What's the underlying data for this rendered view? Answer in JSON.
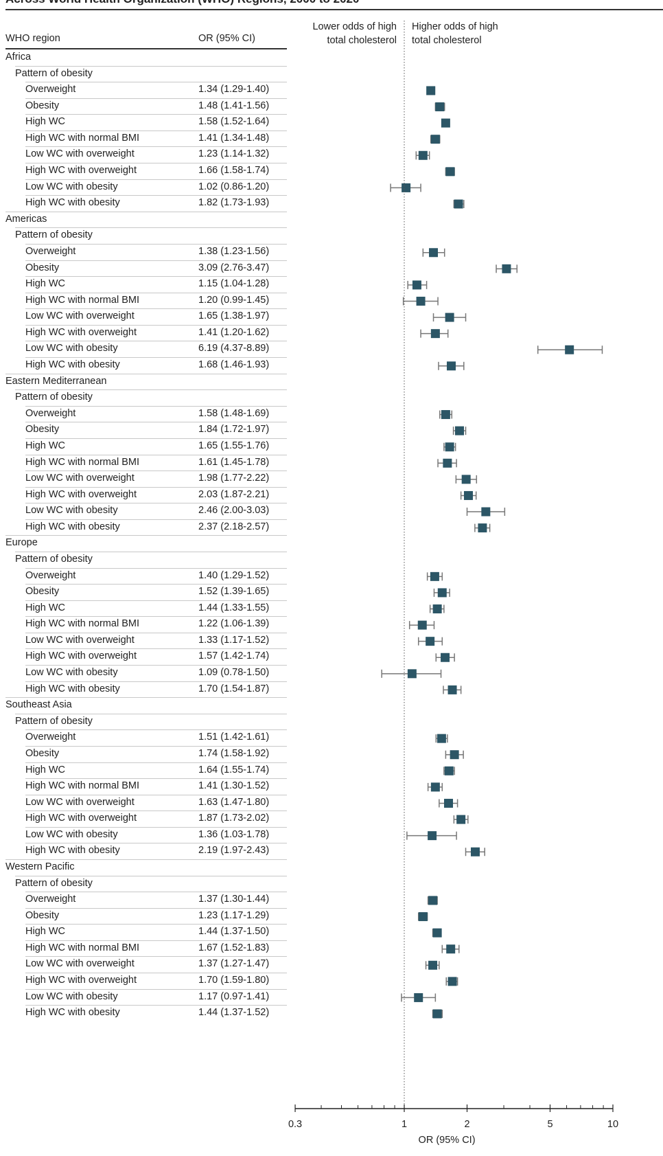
{
  "title": "Across World Health Organization (WHO) Regions, 2000 to 2020",
  "header": {
    "region": "WHO region",
    "or": "OR (95% CI)"
  },
  "direction": {
    "lower": [
      "Lower odds of high",
      "total cholesterol"
    ],
    "higher": [
      "Higher odds of high",
      "total cholesterol"
    ]
  },
  "colors": {
    "marker": "#2c5666",
    "ci": "#777777"
  },
  "chart_data": {
    "type": "forest",
    "xlabel": "OR (95% CI)",
    "xscale": "log",
    "xlim": [
      0.3,
      10
    ],
    "xticks": [
      "0.3",
      "1",
      "2",
      "5",
      "10"
    ],
    "reference_line": 1,
    "regions": [
      {
        "name": "Africa",
        "group": "Pattern of obesity",
        "rows": [
          {
            "label": "Overweight",
            "text": "1.34 (1.29-1.40)",
            "or": 1.34,
            "lo": 1.29,
            "hi": 1.4
          },
          {
            "label": "Obesity",
            "text": "1.48 (1.41-1.56)",
            "or": 1.48,
            "lo": 1.41,
            "hi": 1.56
          },
          {
            "label": "High WC",
            "text": "1.58 (1.52-1.64)",
            "or": 1.58,
            "lo": 1.52,
            "hi": 1.64
          },
          {
            "label": "High WC with normal BMI",
            "text": "1.41 (1.34-1.48)",
            "or": 1.41,
            "lo": 1.34,
            "hi": 1.48
          },
          {
            "label": "Low WC with overweight",
            "text": "1.23 (1.14-1.32)",
            "or": 1.23,
            "lo": 1.14,
            "hi": 1.32
          },
          {
            "label": "High WC with overweight",
            "text": "1.66 (1.58-1.74)",
            "or": 1.66,
            "lo": 1.58,
            "hi": 1.74
          },
          {
            "label": "Low WC with obesity",
            "text": "1.02 (0.86-1.20)",
            "or": 1.02,
            "lo": 0.86,
            "hi": 1.2
          },
          {
            "label": "High WC with obesity",
            "text": "1.82 (1.73-1.93)",
            "or": 1.82,
            "lo": 1.73,
            "hi": 1.93
          }
        ]
      },
      {
        "name": "Americas",
        "group": "Pattern of obesity",
        "rows": [
          {
            "label": "Overweight",
            "text": "1.38 (1.23-1.56)",
            "or": 1.38,
            "lo": 1.23,
            "hi": 1.56
          },
          {
            "label": "Obesity",
            "text": "3.09 (2.76-3.47)",
            "or": 3.09,
            "lo": 2.76,
            "hi": 3.47
          },
          {
            "label": "High WC",
            "text": "1.15 (1.04-1.28)",
            "or": 1.15,
            "lo": 1.04,
            "hi": 1.28
          },
          {
            "label": "High WC with normal BMI",
            "text": "1.20 (0.99-1.45)",
            "or": 1.2,
            "lo": 0.99,
            "hi": 1.45
          },
          {
            "label": "Low WC with overweight",
            "text": "1.65 (1.38-1.97)",
            "or": 1.65,
            "lo": 1.38,
            "hi": 1.97
          },
          {
            "label": "High WC with overweight",
            "text": "1.41 (1.20-1.62)",
            "or": 1.41,
            "lo": 1.2,
            "hi": 1.62
          },
          {
            "label": "Low WC with obesity",
            "text": "6.19 (4.37-8.89)",
            "or": 6.19,
            "lo": 4.37,
            "hi": 8.89
          },
          {
            "label": "High WC with obesity",
            "text": "1.68 (1.46-1.93)",
            "or": 1.68,
            "lo": 1.46,
            "hi": 1.93
          }
        ]
      },
      {
        "name": "Eastern Mediterranean",
        "group": "Pattern of obesity",
        "rows": [
          {
            "label": "Overweight",
            "text": "1.58 (1.48-1.69)",
            "or": 1.58,
            "lo": 1.48,
            "hi": 1.69
          },
          {
            "label": "Obesity",
            "text": "1.84 (1.72-1.97)",
            "or": 1.84,
            "lo": 1.72,
            "hi": 1.97
          },
          {
            "label": "High WC",
            "text": "1.65 (1.55-1.76)",
            "or": 1.65,
            "lo": 1.55,
            "hi": 1.76
          },
          {
            "label": "High WC with normal BMI",
            "text": "1.61 (1.45-1.78)",
            "or": 1.61,
            "lo": 1.45,
            "hi": 1.78
          },
          {
            "label": "Low WC with overweight",
            "text": "1.98 (1.77-2.22)",
            "or": 1.98,
            "lo": 1.77,
            "hi": 2.22
          },
          {
            "label": "High WC with overweight",
            "text": "2.03 (1.87-2.21)",
            "or": 2.03,
            "lo": 1.87,
            "hi": 2.21
          },
          {
            "label": "Low WC with obesity",
            "text": "2.46 (2.00-3.03)",
            "or": 2.46,
            "lo": 2.0,
            "hi": 3.03
          },
          {
            "label": "High WC with obesity",
            "text": "2.37 (2.18-2.57)",
            "or": 2.37,
            "lo": 2.18,
            "hi": 2.57
          }
        ]
      },
      {
        "name": "Europe",
        "group": "Pattern of obesity",
        "rows": [
          {
            "label": "Overweight",
            "text": "1.40 (1.29-1.52)",
            "or": 1.4,
            "lo": 1.29,
            "hi": 1.52
          },
          {
            "label": "Obesity",
            "text": "1.52 (1.39-1.65)",
            "or": 1.52,
            "lo": 1.39,
            "hi": 1.65
          },
          {
            "label": "High WC",
            "text": "1.44 (1.33-1.55)",
            "or": 1.44,
            "lo": 1.33,
            "hi": 1.55
          },
          {
            "label": "High WC with normal BMI",
            "text": "1.22 (1.06-1.39)",
            "or": 1.22,
            "lo": 1.06,
            "hi": 1.39
          },
          {
            "label": "Low WC with overweight",
            "text": "1.33 (1.17-1.52)",
            "or": 1.33,
            "lo": 1.17,
            "hi": 1.52
          },
          {
            "label": "High WC with overweight",
            "text": "1.57 (1.42-1.74)",
            "or": 1.57,
            "lo": 1.42,
            "hi": 1.74
          },
          {
            "label": "Low WC with obesity",
            "text": "1.09 (0.78-1.50)",
            "or": 1.09,
            "lo": 0.78,
            "hi": 1.5
          },
          {
            "label": "High WC with obesity",
            "text": "1.70 (1.54-1.87)",
            "or": 1.7,
            "lo": 1.54,
            "hi": 1.87
          }
        ]
      },
      {
        "name": "Southeast Asia",
        "group": "Pattern of obesity",
        "rows": [
          {
            "label": "Overweight",
            "text": "1.51 (1.42-1.61)",
            "or": 1.51,
            "lo": 1.42,
            "hi": 1.61
          },
          {
            "label": "Obesity",
            "text": "1.74 (1.58-1.92)",
            "or": 1.74,
            "lo": 1.58,
            "hi": 1.92
          },
          {
            "label": "High WC",
            "text": "1.64 (1.55-1.74)",
            "or": 1.64,
            "lo": 1.55,
            "hi": 1.74
          },
          {
            "label": "High WC with normal BMI",
            "text": "1.41 (1.30-1.52)",
            "or": 1.41,
            "lo": 1.3,
            "hi": 1.52
          },
          {
            "label": "Low WC with overweight",
            "text": "1.63 (1.47-1.80)",
            "or": 1.63,
            "lo": 1.47,
            "hi": 1.8
          },
          {
            "label": "High WC with overweight",
            "text": "1.87 (1.73-2.02)",
            "or": 1.87,
            "lo": 1.73,
            "hi": 2.02
          },
          {
            "label": "Low WC with obesity",
            "text": "1.36 (1.03-1.78)",
            "or": 1.36,
            "lo": 1.03,
            "hi": 1.78
          },
          {
            "label": "High WC with obesity",
            "text": "2.19 (1.97-2.43)",
            "or": 2.19,
            "lo": 1.97,
            "hi": 2.43
          }
        ]
      },
      {
        "name": "Western Pacific",
        "group": "Pattern of obesity",
        "rows": [
          {
            "label": "Overweight",
            "text": "1.37 (1.30-1.44)",
            "or": 1.37,
            "lo": 1.3,
            "hi": 1.44
          },
          {
            "label": "Obesity",
            "text": "1.23 (1.17-1.29)",
            "or": 1.23,
            "lo": 1.17,
            "hi": 1.29
          },
          {
            "label": "High WC",
            "text": "1.44 (1.37-1.50)",
            "or": 1.44,
            "lo": 1.37,
            "hi": 1.5
          },
          {
            "label": "High WC with normal BMI",
            "text": "1.67 (1.52-1.83)",
            "or": 1.67,
            "lo": 1.52,
            "hi": 1.83
          },
          {
            "label": "Low WC with overweight",
            "text": "1.37 (1.27-1.47)",
            "or": 1.37,
            "lo": 1.27,
            "hi": 1.47
          },
          {
            "label": "High WC with overweight",
            "text": "1.70 (1.59-1.80)",
            "or": 1.7,
            "lo": 1.59,
            "hi": 1.8
          },
          {
            "label": "Low WC with obesity",
            "text": "1.17 (0.97-1.41)",
            "or": 1.17,
            "lo": 0.97,
            "hi": 1.41
          },
          {
            "label": "High WC with obesity",
            "text": "1.44 (1.37-1.52)",
            "or": 1.44,
            "lo": 1.37,
            "hi": 1.52
          }
        ]
      }
    ]
  }
}
